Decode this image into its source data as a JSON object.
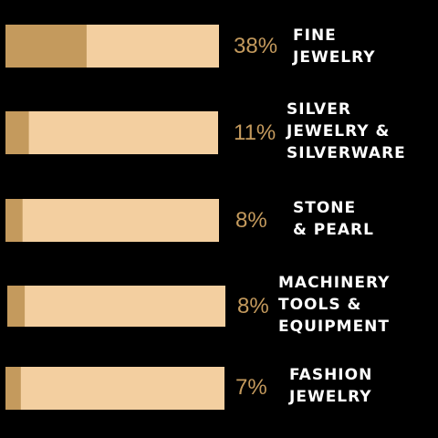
{
  "chart_data": {
    "type": "bar",
    "orientation": "horizontal",
    "stacked_percent": true,
    "categories": [
      [
        "FINE",
        "JEWELRY"
      ],
      [
        "SILVER",
        "JEWELRY &",
        "SILVERWARE"
      ],
      [
        "STONE",
        "& PEARL"
      ],
      [
        "MACHINERY",
        "TOOLS &",
        "EQUIPMENT"
      ],
      [
        "FASHION",
        "JEWELRY"
      ]
    ],
    "values": [
      38,
      11,
      8,
      8,
      7
    ],
    "value_labels": [
      "38%",
      "11%",
      "8%",
      "8%",
      "7%"
    ],
    "xlim": [
      0,
      100
    ]
  },
  "colors": {
    "background": "#000000",
    "bar_fill": "#c49a5d",
    "bar_track": "#f3cfa0",
    "percent_text": "#c49a5d",
    "category_text": "#ffffff"
  }
}
